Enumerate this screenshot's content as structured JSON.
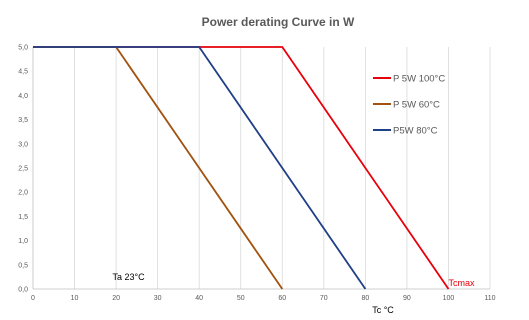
{
  "chart_data": {
    "type": "line",
    "title": "Power derating Curve in W",
    "xlabel": "Tc °C",
    "ylabel": "",
    "xlim": [
      0,
      110
    ],
    "ylim": [
      0,
      5
    ],
    "x_ticks": [
      "0",
      "10",
      "20",
      "30",
      "40",
      "50",
      "60",
      "70",
      "80",
      "90",
      "100",
      "110"
    ],
    "y_ticks": [
      "0,0",
      "0,5",
      "1,0",
      "1,5",
      "2,0",
      "2,5",
      "3,0",
      "3,5",
      "4,0",
      "4,5",
      "5,0"
    ],
    "grid": "vertical",
    "legend_position": "right",
    "series": [
      {
        "name": "P 5W 100°C",
        "color": "#e8000b",
        "points": [
          [
            0,
            5
          ],
          [
            60,
            5
          ],
          [
            100,
            0
          ]
        ]
      },
      {
        "name": "P 5W 60°C",
        "color": "#a0520e",
        "points": [
          [
            0,
            5
          ],
          [
            20,
            5
          ],
          [
            60,
            0
          ]
        ]
      },
      {
        "name": "P5W 80°C",
        "color": "#1f3f86",
        "points": [
          [
            0,
            5
          ],
          [
            40,
            5
          ],
          [
            80,
            0
          ]
        ]
      }
    ],
    "annotations": [
      {
        "text": "Ta 23°C",
        "x": 23,
        "y": 0.25,
        "color": "#000000"
      },
      {
        "text": "Tcmax",
        "x": 100,
        "y": 0.12,
        "color": "#e8000b"
      }
    ]
  }
}
